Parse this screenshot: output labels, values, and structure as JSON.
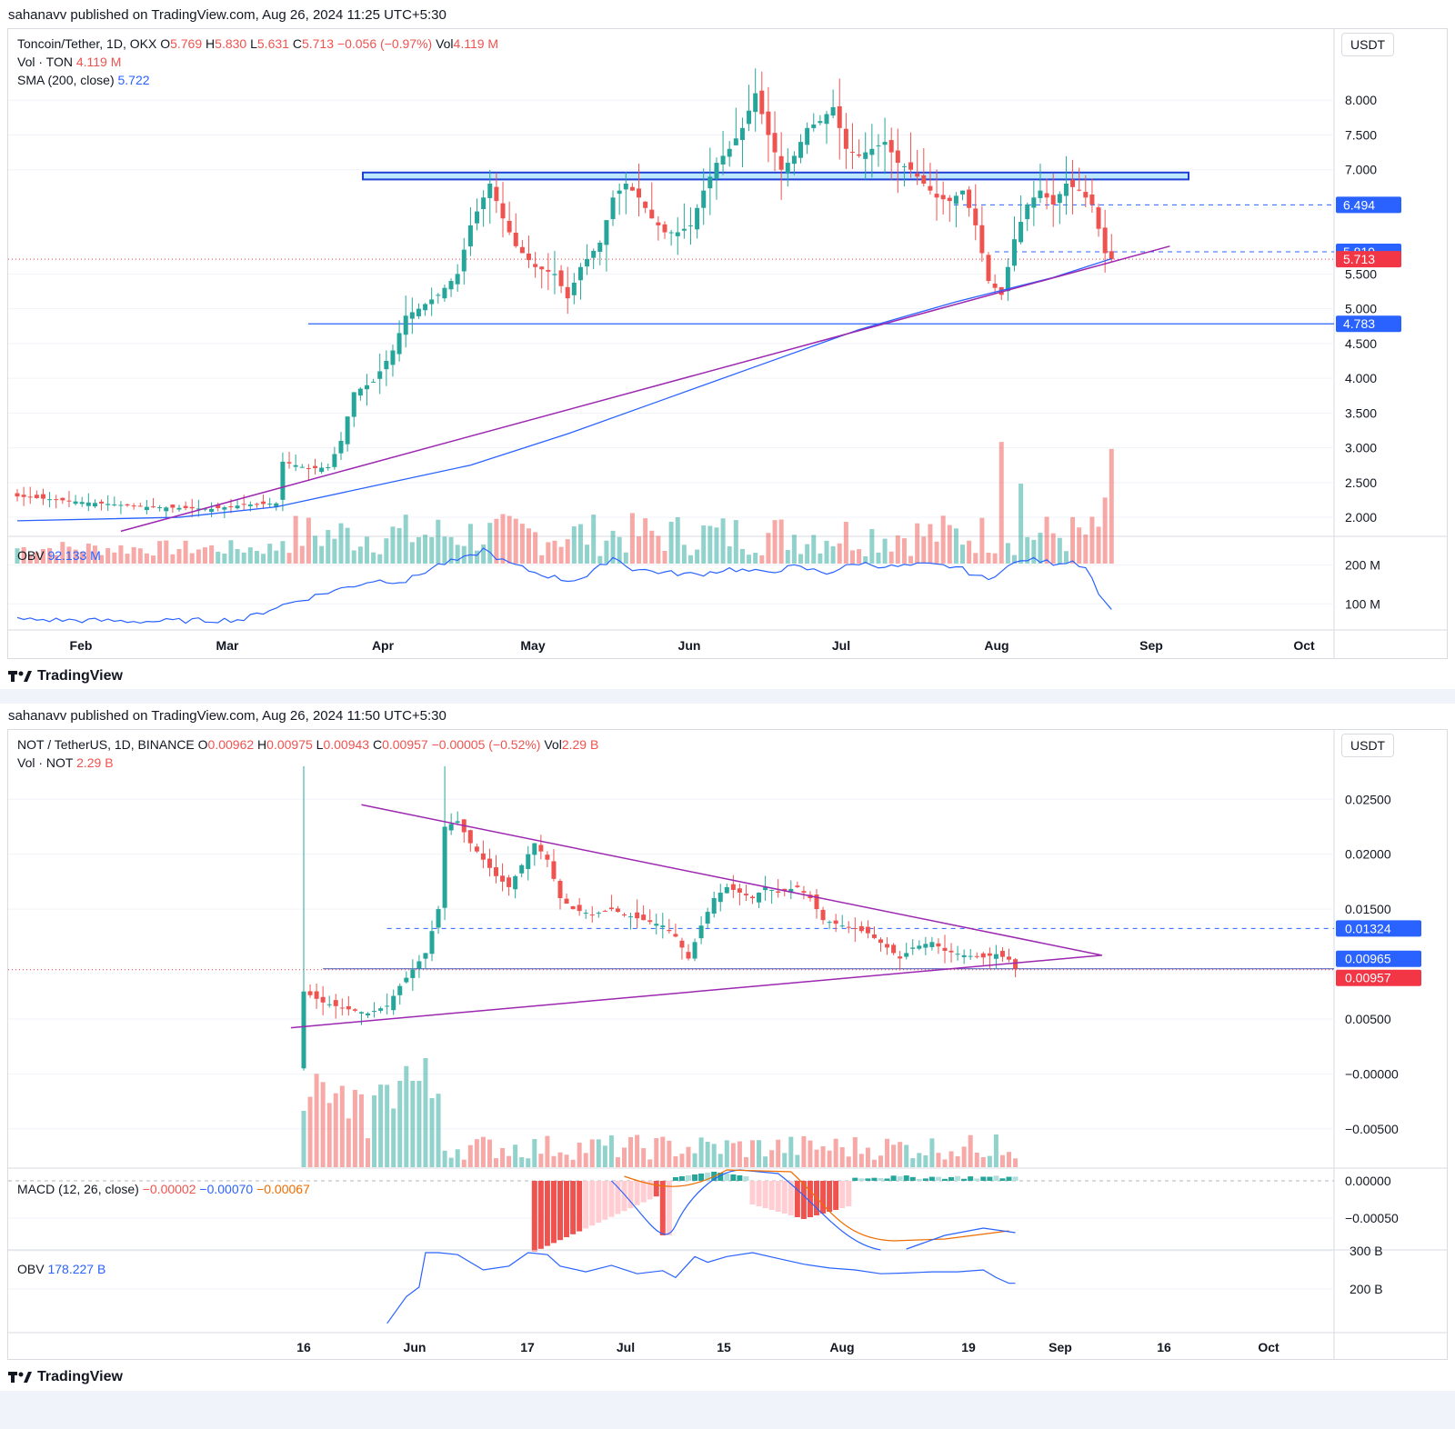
{
  "chart_data": [
    {
      "type": "candlestick",
      "published": "sahanavv published on TradingView.com, Aug 26, 2024 11:25 UTC+5:30",
      "symbol": "Toncoin/Tether, 1D, OKX",
      "ohlc": {
        "O": "5.769",
        "H": "5.830",
        "L": "5.631",
        "C": "5.713",
        "change": "−0.056 (−0.97%)",
        "vol": "4.119 M"
      },
      "indicators": [
        {
          "name": "Vol · TON",
          "value": "4.119 M"
        },
        {
          "name": "SMA (200, close)",
          "value": "5.722"
        },
        {
          "name": "OBV",
          "value": "92.133 M"
        }
      ],
      "currency": "USDT",
      "y_ticks": [
        "8.000",
        "7.500",
        "7.000",
        "5.500",
        "5.000",
        "4.500",
        "4.000",
        "3.500",
        "3.000",
        "2.500",
        "2.000"
      ],
      "ylim": [
        1.7,
        8.5
      ],
      "price_labels": [
        {
          "value": "6.494",
          "y": 6.494,
          "color": "#2962ff"
        },
        {
          "value": "5.819",
          "y": 5.819,
          "color": "#2962ff"
        },
        {
          "value": "5.713",
          "y": 5.713,
          "color": "#f23645"
        },
        {
          "value": "4.783",
          "y": 4.783,
          "color": "#2962ff"
        }
      ],
      "obv_ticks": [
        "200 M",
        "100 M"
      ],
      "x_labels": [
        "Feb",
        "Mar",
        "Apr",
        "May",
        "Jun",
        "Jul",
        "Aug",
        "Sep",
        "Oct"
      ],
      "resistance_zone": [
        6.86,
        6.96
      ],
      "support_level": 4.783,
      "close_path": [
        [
          0,
          2.3
        ],
        [
          10,
          2.22
        ],
        [
          20,
          2.15
        ],
        [
          30,
          2.12
        ],
        [
          35,
          2.18
        ],
        [
          40,
          2.2
        ],
        [
          41,
          2.8
        ],
        [
          45,
          2.7
        ],
        [
          48,
          2.72
        ],
        [
          50,
          3.1
        ],
        [
          52,
          3.8
        ],
        [
          55,
          3.95
        ],
        [
          58,
          4.4
        ],
        [
          60,
          4.9
        ],
        [
          62,
          5.0
        ],
        [
          65,
          5.2
        ],
        [
          68,
          5.5
        ],
        [
          70,
          6.2
        ],
        [
          72,
          6.6
        ],
        [
          73,
          6.8
        ],
        [
          75,
          6.3
        ],
        [
          77,
          5.9
        ],
        [
          80,
          5.6
        ],
        [
          83,
          5.5
        ],
        [
          85,
          5.15
        ],
        [
          87,
          5.6
        ],
        [
          90,
          5.95
        ],
        [
          92,
          6.6
        ],
        [
          94,
          6.8
        ],
        [
          96,
          6.6
        ],
        [
          98,
          6.3
        ],
        [
          100,
          6.1
        ],
        [
          102,
          6.1
        ],
        [
          104,
          6.2
        ],
        [
          106,
          6.7
        ],
        [
          108,
          7.1
        ],
        [
          110,
          7.3
        ],
        [
          112,
          7.6
        ],
        [
          114,
          8.1
        ],
        [
          116,
          7.5
        ],
        [
          118,
          7.0
        ],
        [
          120,
          7.2
        ],
        [
          122,
          7.6
        ],
        [
          124,
          7.7
        ],
        [
          126,
          7.9
        ],
        [
          128,
          7.3
        ],
        [
          130,
          7.2
        ],
        [
          132,
          7.3
        ],
        [
          134,
          7.4
        ],
        [
          136,
          7.1
        ],
        [
          138,
          7.0
        ],
        [
          140,
          6.8
        ],
        [
          142,
          6.6
        ],
        [
          144,
          6.55
        ],
        [
          146,
          6.7
        ],
        [
          148,
          6.2
        ],
        [
          150,
          5.4
        ],
        [
          152,
          5.2
        ],
        [
          154,
          6.0
        ],
        [
          156,
          6.5
        ],
        [
          158,
          6.7
        ],
        [
          160,
          6.5
        ],
        [
          162,
          6.8
        ],
        [
          164,
          6.7
        ],
        [
          166,
          6.5
        ],
        [
          168,
          5.8
        ],
        [
          169,
          5.713
        ]
      ],
      "sma_path": [
        [
          0,
          1.95
        ],
        [
          25,
          2.0
        ],
        [
          40,
          2.15
        ],
        [
          55,
          2.45
        ],
        [
          70,
          2.75
        ],
        [
          85,
          3.2
        ],
        [
          100,
          3.7
        ],
        [
          115,
          4.2
        ],
        [
          130,
          4.7
        ],
        [
          145,
          5.1
        ],
        [
          160,
          5.45
        ],
        [
          169,
          5.72
        ]
      ],
      "trendline": [
        [
          16,
          1.8
        ],
        [
          178,
          5.9
        ]
      ],
      "obv_path": [
        [
          0,
          60
        ],
        [
          20,
          55
        ],
        [
          30,
          58
        ],
        [
          35,
          60
        ],
        [
          40,
          92
        ],
        [
          48,
          130
        ],
        [
          55,
          160
        ],
        [
          60,
          158
        ],
        [
          65,
          200
        ],
        [
          70,
          220
        ],
        [
          72,
          240
        ],
        [
          75,
          210
        ],
        [
          80,
          180
        ],
        [
          85,
          160
        ],
        [
          88,
          170
        ],
        [
          92,
          220
        ],
        [
          95,
          190
        ],
        [
          100,
          180
        ],
        [
          105,
          175
        ],
        [
          110,
          190
        ],
        [
          115,
          180
        ],
        [
          120,
          195
        ],
        [
          125,
          180
        ],
        [
          130,
          205
        ],
        [
          135,
          195
        ],
        [
          140,
          200
        ],
        [
          145,
          195
        ],
        [
          150,
          160
        ],
        [
          152,
          190
        ],
        [
          156,
          215
        ],
        [
          160,
          205
        ],
        [
          163,
          210
        ],
        [
          165,
          195
        ],
        [
          168,
          100
        ],
        [
          169,
          92
        ]
      ],
      "volume_spikes": [
        [
          152,
          3.5
        ],
        [
          155,
          2.9
        ],
        [
          168,
          2.7
        ],
        [
          169,
          3.4
        ]
      ]
    },
    {
      "type": "candlestick",
      "published": "sahanavv published on TradingView.com, Aug 26, 2024 11:50 UTC+5:30",
      "symbol": "NOT / TetherUS, 1D, BINANCE",
      "ohlc": {
        "O": "0.00962",
        "H": "0.00975",
        "L": "0.00943",
        "C": "0.00957",
        "change": "−0.00005 (−0.52%)",
        "vol": "2.29 B"
      },
      "indicators": [
        {
          "name": "Vol · NOT",
          "value": "2.29 B"
        },
        {
          "name": "MACD (12, 26, close)",
          "values": [
            "−0.00002",
            "−0.00070",
            "−0.00067"
          ]
        },
        {
          "name": "OBV",
          "value": "178.227 B"
        }
      ],
      "currency": "USDT",
      "y_ticks": [
        "0.02500",
        "0.02000",
        "0.01500",
        "0.00500",
        "−0.00000",
        "−0.00500"
      ],
      "ylim": [
        -0.008,
        0.028
      ],
      "price_labels": [
        {
          "value": "0.01324",
          "y": 0.01324,
          "color": "#2962ff"
        },
        {
          "value": "0.00965",
          "y": 0.00965,
          "color": "#2962ff"
        },
        {
          "value": "0.00957",
          "y": 0.00957,
          "color": "#f23645"
        }
      ],
      "macd_ticks": [
        "0.00000",
        "−0.00050"
      ],
      "obv_ticks": [
        "300 B",
        "200 B"
      ],
      "x_labels": [
        "16",
        "Jun",
        "17",
        "Jul",
        "15",
        "Aug",
        "19",
        "Sep",
        "16",
        "Oct"
      ],
      "support_level": 0.00957,
      "close_path": [
        [
          0,
          0.0075
        ],
        [
          3,
          0.0065
        ],
        [
          6,
          0.006
        ],
        [
          10,
          0.0055
        ],
        [
          13,
          0.0062
        ],
        [
          15,
          0.008
        ],
        [
          17,
          0.0095
        ],
        [
          19,
          0.011
        ],
        [
          21,
          0.015
        ],
        [
          22,
          0.0225
        ],
        [
          24,
          0.023
        ],
        [
          26,
          0.021
        ],
        [
          28,
          0.0195
        ],
        [
          30,
          0.018
        ],
        [
          32,
          0.017
        ],
        [
          34,
          0.019
        ],
        [
          36,
          0.021
        ],
        [
          38,
          0.0195
        ],
        [
          40,
          0.016
        ],
        [
          42,
          0.015
        ],
        [
          45,
          0.0145
        ],
        [
          48,
          0.015
        ],
        [
          50,
          0.0145
        ],
        [
          53,
          0.014
        ],
        [
          56,
          0.0135
        ],
        [
          58,
          0.0125
        ],
        [
          60,
          0.0105
        ],
        [
          62,
          0.0135
        ],
        [
          64,
          0.016
        ],
        [
          66,
          0.017
        ],
        [
          68,
          0.0165
        ],
        [
          70,
          0.016
        ],
        [
          72,
          0.017
        ],
        [
          74,
          0.0165
        ],
        [
          77,
          0.017
        ],
        [
          79,
          0.016
        ],
        [
          81,
          0.014
        ],
        [
          84,
          0.0135
        ],
        [
          86,
          0.0132
        ],
        [
          88,
          0.0128
        ],
        [
          91,
          0.0115
        ],
        [
          93,
          0.0105
        ],
        [
          95,
          0.0115
        ],
        [
          98,
          0.012
        ],
        [
          100,
          0.0112
        ],
        [
          103,
          0.0108
        ],
        [
          106,
          0.0106
        ],
        [
          108,
          0.0109
        ],
        [
          110,
          0.0104
        ],
        [
          111,
          0.00957
        ]
      ],
      "upper_trendline": [
        [
          9,
          0.0245
        ],
        [
          96,
          0.0108
        ]
      ],
      "lower_trendline": [
        [
          -2,
          0.0042
        ],
        [
          96,
          0.0108
        ]
      ],
      "dashed_level": 0.01324
    }
  ]
}
